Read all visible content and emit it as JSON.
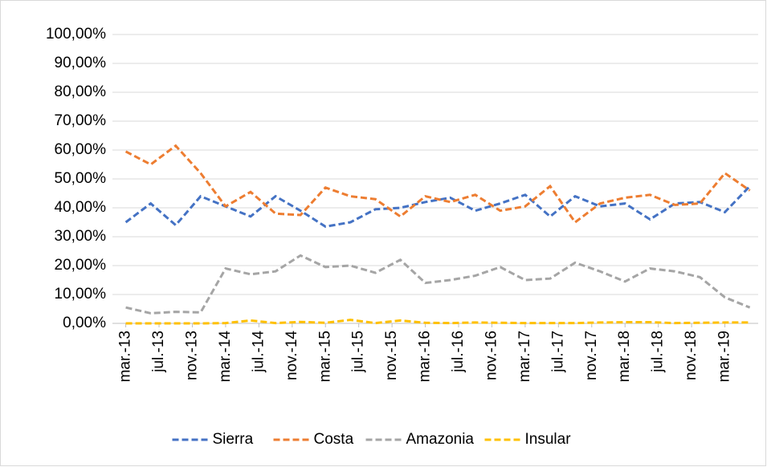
{
  "chart_data": {
    "type": "line",
    "x": [
      0,
      3,
      6,
      9,
      12,
      15,
      18,
      21,
      24,
      27,
      30,
      33,
      36,
      39,
      42,
      45,
      48,
      51,
      54,
      57,
      60,
      63,
      66,
      69,
      72,
      75
    ],
    "xlim": [
      -1.6,
      76
    ],
    "xticks": [
      {
        "value": 0,
        "label": "mar.-13"
      },
      {
        "value": 4,
        "label": "jul.-13"
      },
      {
        "value": 8,
        "label": "nov.-13"
      },
      {
        "value": 12,
        "label": "mar.-14"
      },
      {
        "value": 16,
        "label": "jul.-14"
      },
      {
        "value": 20,
        "label": "nov.-14"
      },
      {
        "value": 24,
        "label": "mar.-15"
      },
      {
        "value": 28,
        "label": "jul.-15"
      },
      {
        "value": 32,
        "label": "nov.-15"
      },
      {
        "value": 36,
        "label": "mar.-16"
      },
      {
        "value": 40,
        "label": "jul.-16"
      },
      {
        "value": 44,
        "label": "nov.-16"
      },
      {
        "value": 48,
        "label": "mar.-17"
      },
      {
        "value": 52,
        "label": "jul.-17"
      },
      {
        "value": 56,
        "label": "nov.-17"
      },
      {
        "value": 60,
        "label": "mar.-18"
      },
      {
        "value": 64,
        "label": "jul.-18"
      },
      {
        "value": 68,
        "label": "nov.-18"
      },
      {
        "value": 72,
        "label": "mar.-19"
      }
    ],
    "ylim": [
      0,
      100
    ],
    "yticks": [
      {
        "value": 0,
        "label": "0,00%"
      },
      {
        "value": 10,
        "label": "10,00%"
      },
      {
        "value": 20,
        "label": "20,00%"
      },
      {
        "value": 30,
        "label": "30,00%"
      },
      {
        "value": 40,
        "label": "40,00%"
      },
      {
        "value": 50,
        "label": "50,00%"
      },
      {
        "value": 60,
        "label": "60,00%"
      },
      {
        "value": 70,
        "label": "70,00%"
      },
      {
        "value": 80,
        "label": "80,00%"
      },
      {
        "value": 90,
        "label": "90,00%"
      },
      {
        "value": 100,
        "label": "100,00%"
      }
    ],
    "grid": true,
    "legend": "bottom",
    "series": [
      {
        "name": "Sierra",
        "color": "#4472c4",
        "values": [
          35,
          41.5,
          34,
          44,
          40.5,
          37,
          44,
          39,
          33.5,
          35,
          39.5,
          40,
          42,
          43.5,
          39,
          41.5,
          44.5,
          37,
          44,
          40.5,
          41.5,
          36,
          41.5,
          42,
          38.5,
          47.5
        ]
      },
      {
        "name": "Costa",
        "color": "#ed7d31",
        "values": [
          59.5,
          55,
          61.5,
          52,
          40.5,
          45.5,
          38,
          37.5,
          47,
          44,
          43,
          37,
          44,
          42,
          44.5,
          39,
          40.5,
          47.5,
          35,
          41.5,
          43.5,
          44.5,
          41,
          41.5,
          52,
          46
        ]
      },
      {
        "name": "Amazonia",
        "color": "#a5a5a5",
        "values": [
          5.5,
          3.5,
          4,
          3.8,
          19,
          17,
          18,
          23.5,
          19.5,
          20,
          17.5,
          22,
          14,
          15,
          16.5,
          19.5,
          15,
          15.5,
          21,
          18,
          14.5,
          19,
          18,
          16,
          9,
          5.5
        ]
      },
      {
        "name": "Insular",
        "color": "#ffc000",
        "values": [
          0,
          0,
          0,
          0,
          0.1,
          1,
          0.1,
          0.5,
          0.2,
          1.2,
          0.1,
          1,
          0.2,
          0.1,
          0.3,
          0.2,
          0.1,
          0.1,
          0.1,
          0.3,
          0.4,
          0.4,
          0.1,
          0.2,
          0.3,
          0.3
        ]
      }
    ]
  }
}
